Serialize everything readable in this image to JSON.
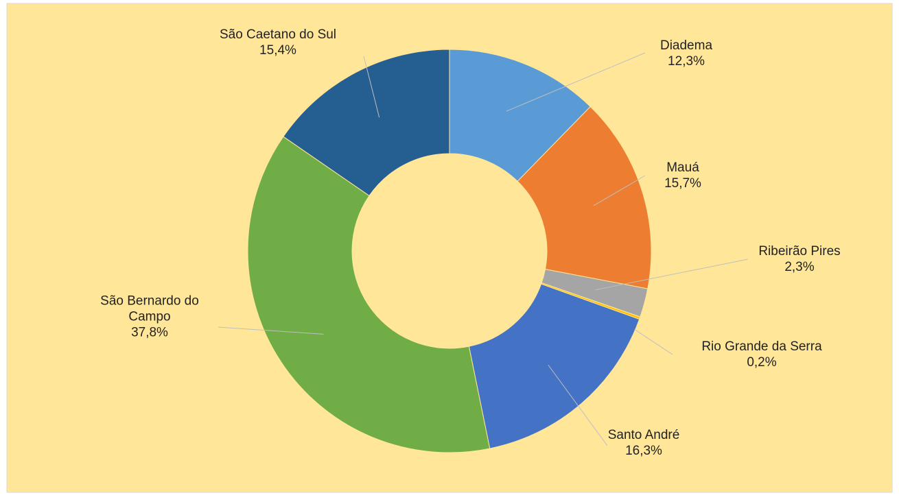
{
  "chart_data": {
    "type": "donut",
    "categories": [
      "Diadema",
      "Mauá",
      "Ribeirão Pires",
      "Rio Grande da Serra",
      "Santo André",
      "São Bernardo do Campo",
      "São Caetano do Sul"
    ],
    "values": [
      12.3,
      15.7,
      2.3,
      0.2,
      16.3,
      37.8,
      15.4
    ],
    "value_labels": [
      "12,3%",
      "15,7%",
      "2,3%",
      "0,2%",
      "16,3%",
      "37,8%",
      "15,4%"
    ],
    "colors": [
      "#5b9bd5",
      "#ed7d31",
      "#a5a5a5",
      "#ffc000",
      "#4472c4",
      "#70ad47",
      "#255e91"
    ]
  }
}
